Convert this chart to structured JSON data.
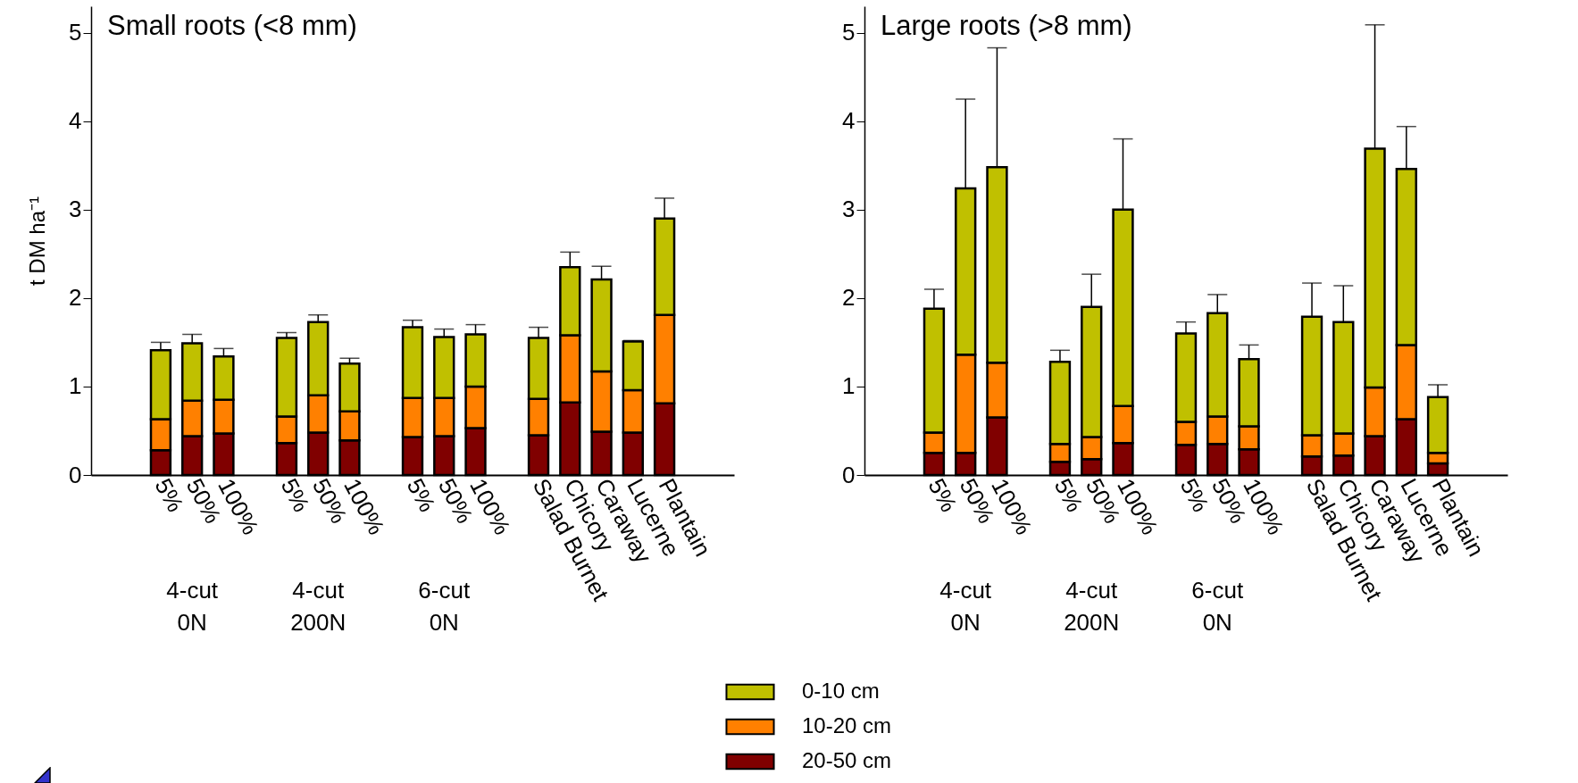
{
  "chart_data": [
    {
      "type": "bar",
      "title": "Small roots (<8 mm)",
      "ylabel": "t DM ha⁻¹",
      "stacked": true,
      "legend": "bottom",
      "categories": [
        null,
        "5%",
        "50%",
        "100%",
        null,
        "5%",
        "50%",
        "100%",
        null,
        "5%",
        "50%",
        "100%",
        null,
        "Salad Burnet",
        "Chicory",
        "Caraway",
        "Lucerne",
        "Plantain",
        null
      ],
      "series": [
        {
          "name": "20-50 cm",
          "color": "#800000",
          "values": [
            null,
            0.28,
            0.44,
            0.47,
            null,
            0.36,
            0.48,
            0.39,
            null,
            0.43,
            0.44,
            0.53,
            null,
            0.45,
            0.82,
            0.49,
            0.48,
            0.81,
            null
          ]
        },
        {
          "name": "10-20 cm",
          "color": "#ff8000",
          "values": [
            null,
            0.35,
            0.4,
            0.38,
            null,
            0.3,
            0.42,
            0.33,
            null,
            0.44,
            0.43,
            0.47,
            null,
            0.41,
            0.76,
            0.68,
            0.48,
            1.0,
            null
          ]
        },
        {
          "name": "0-10 cm",
          "color": "#c0c000",
          "values": [
            null,
            0.78,
            0.65,
            0.49,
            null,
            0.89,
            0.83,
            0.54,
            null,
            0.8,
            0.69,
            0.59,
            null,
            0.69,
            0.77,
            1.04,
            0.55,
            1.09,
            null
          ],
          "errors": [
            null,
            [
              1.41,
              1.5
            ],
            [
              1.49,
              1.59
            ],
            [
              1.34,
              1.43
            ],
            null,
            [
              1.55,
              1.61
            ],
            [
              1.73,
              1.81
            ],
            [
              1.26,
              1.32
            ],
            null,
            [
              1.67,
              1.75
            ],
            [
              1.56,
              1.65
            ],
            [
              1.59,
              1.7
            ],
            null,
            [
              1.55,
              1.67
            ],
            [
              2.35,
              2.52
            ],
            [
              2.21,
              2.36
            ],
            [
              1.51,
              1.52
            ],
            [
              2.9,
              3.13
            ],
            null
          ]
        }
      ],
      "ylim": [
        0,
        5.3
      ],
      "yticks": [
        0,
        1,
        2,
        3,
        4,
        5
      ],
      "annotations": [
        "4-cut 0N",
        "4-cut 200N",
        "6-cut 0N"
      ]
    },
    {
      "type": "bar",
      "title": "Large roots (>8 mm)",
      "stacked": true,
      "legend": "bottom",
      "categories": [
        null,
        "5%",
        "50%",
        "100%",
        null,
        "5%",
        "50%",
        "100%",
        null,
        "5%",
        "50%",
        "100%",
        null,
        "Salad Burnet",
        "Chicory",
        "Caraway",
        "Lucerne",
        "Plantain",
        null
      ],
      "series": [
        {
          "name": "20-50 cm",
          "color": "#800000",
          "values": [
            null,
            0.25,
            0.25,
            0.65,
            null,
            0.15,
            0.18,
            0.36,
            null,
            0.34,
            0.35,
            0.29,
            null,
            0.21,
            0.22,
            0.44,
            0.63,
            0.13,
            null
          ]
        },
        {
          "name": "10-20 cm",
          "color": "#ff8000",
          "values": [
            null,
            0.23,
            1.11,
            0.62,
            null,
            0.2,
            0.25,
            0.42,
            null,
            0.26,
            0.31,
            0.26,
            null,
            0.24,
            0.25,
            0.55,
            0.84,
            0.12,
            null
          ]
        },
        {
          "name": "0-10 cm",
          "color": "#c0c000",
          "values": [
            null,
            1.4,
            1.88,
            2.21,
            null,
            0.93,
            1.47,
            2.22,
            null,
            1.0,
            1.17,
            0.76,
            null,
            1.34,
            1.26,
            2.7,
            1.99,
            0.63,
            null
          ],
          "errors": [
            null,
            [
              1.88,
              2.1
            ],
            [
              3.24,
              4.25
            ],
            [
              3.48,
              4.83
            ],
            null,
            [
              1.28,
              1.41
            ],
            [
              1.9,
              2.27
            ],
            [
              3.0,
              3.8
            ],
            null,
            [
              1.6,
              1.73
            ],
            [
              1.83,
              2.04
            ],
            [
              1.31,
              1.47
            ],
            null,
            [
              1.79,
              2.17
            ],
            [
              1.73,
              2.14
            ],
            [
              3.69,
              5.09
            ],
            [
              3.46,
              3.94
            ],
            [
              0.88,
              1.02
            ],
            null
          ]
        }
      ],
      "ylim": [
        0,
        5.3
      ],
      "yticks": [
        0,
        1,
        2,
        3,
        4,
        5
      ],
      "annotations": [
        "4-cut 0N",
        "4-cut 200N",
        "6-cut 0N"
      ]
    }
  ]
}
